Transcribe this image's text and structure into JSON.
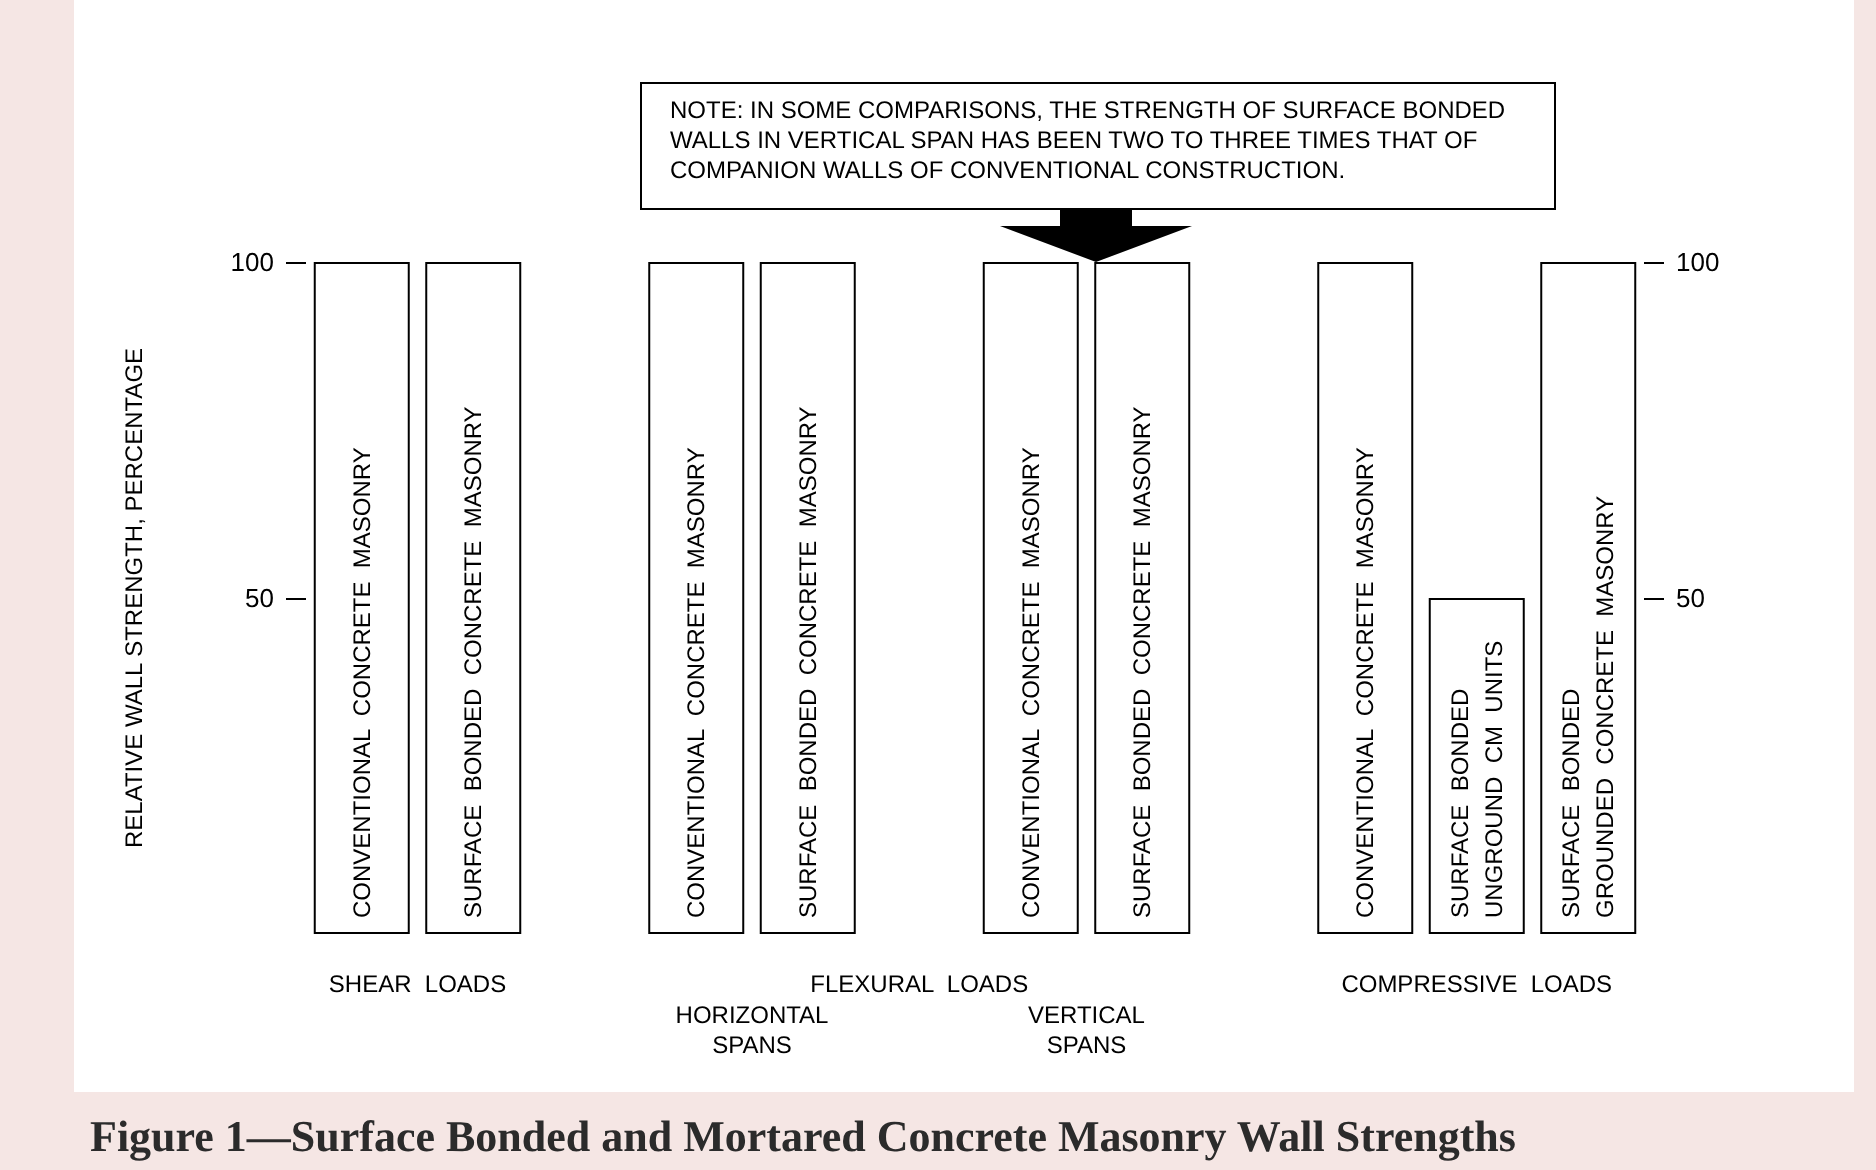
{
  "chart_data": {
    "type": "bar",
    "title": "Figure 1—Surface Bonded and Mortared Concrete Masonry Wall Strengths",
    "ylabel": "RELATIVE WALL STRENGTH, PERCENTAGE",
    "categories": [
      "CONVENTIONAL  CONCRETE  MASONRY",
      "SURFACE  BONDED  CONCRETE  MASONRY",
      null,
      "CONVENTIONAL  CONCRETE  MASONRY",
      "SURFACE  BONDED  CONCRETE  MASONRY",
      null,
      "CONVENTIONAL  CONCRETE  MASONRY",
      "SURFACE  BONDED  CONCRETE  MASONRY",
      null,
      "CONVENTIONAL  CONCRETE  MASONRY",
      "SURFACE  BONDED\nUNGROUND  CM  UNITS",
      "SURFACE  BONDED\nGROUNDED  CONCRETE  MASONRY"
    ],
    "values": [
      100,
      100,
      null,
      100,
      100,
      null,
      100,
      100,
      null,
      100,
      50,
      100
    ],
    "color": "#ffffff",
    "ylim": [
      0,
      100
    ],
    "yticks": [
      50,
      100
    ],
    "y2lim": [
      0,
      100
    ],
    "y2ticks": [
      50,
      100
    ],
    "tick_labels": "y",
    "annotations": [
      "NOTE: IN SOME COMPARISONS, THE STRENGTH OF SURFACE BONDED\nWALLS IN VERTICAL SPAN HAS BEEN TWO TO THREE TIMES THAT OF\nCOMPANION WALLS OF CONVENTIONAL CONSTRUCTION.",
      "SHEAR  LOADS",
      "FLEXURAL  LOADS",
      "HORIZONTAL\nSPANS",
      "VERTICAL\nSPANS",
      "COMPRESSIVE  LOADS"
    ]
  }
}
